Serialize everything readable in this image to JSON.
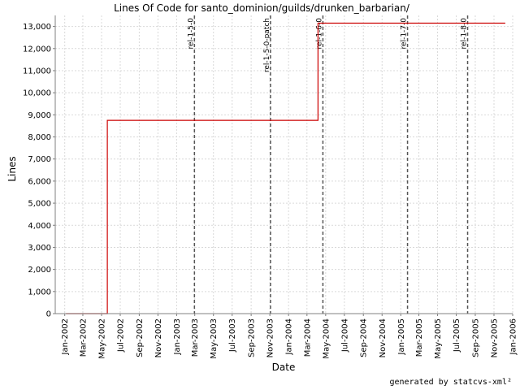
{
  "chart_data": {
    "type": "line",
    "title": "Lines Of Code for santo_dominion/guilds/drunken_barbarian/",
    "xlabel": "Date",
    "ylabel": "Lines",
    "ylim": [
      0,
      13500
    ],
    "xlim": [
      "2001-12-01",
      "2006-01-01"
    ],
    "grid": true,
    "line_color": "#cc0000",
    "y_ticks": [
      0,
      1000,
      2000,
      3000,
      4000,
      5000,
      6000,
      7000,
      8000,
      9000,
      10000,
      11000,
      12000,
      13000
    ],
    "y_tick_labels": [
      "0",
      "1,000",
      "2,000",
      "3,000",
      "4,000",
      "5,000",
      "6,000",
      "7,000",
      "8,000",
      "9,000",
      "10,000",
      "11,000",
      "12,000",
      "13,000"
    ],
    "x_ticks": [
      {
        "date": "2002-01-01",
        "label": "Jan-2002"
      },
      {
        "date": "2002-03-01",
        "label": "Mar-2002"
      },
      {
        "date": "2002-05-01",
        "label": "May-2002"
      },
      {
        "date": "2002-07-01",
        "label": "Jul-2002"
      },
      {
        "date": "2002-09-01",
        "label": "Sep-2002"
      },
      {
        "date": "2002-11-01",
        "label": "Nov-2002"
      },
      {
        "date": "2003-01-01",
        "label": "Jan-2003"
      },
      {
        "date": "2003-03-01",
        "label": "Mar-2003"
      },
      {
        "date": "2003-05-01",
        "label": "May-2003"
      },
      {
        "date": "2003-07-01",
        "label": "Jul-2003"
      },
      {
        "date": "2003-09-01",
        "label": "Sep-2003"
      },
      {
        "date": "2003-11-01",
        "label": "Nov-2003"
      },
      {
        "date": "2004-01-01",
        "label": "Jan-2004"
      },
      {
        "date": "2004-03-01",
        "label": "Mar-2004"
      },
      {
        "date": "2004-05-01",
        "label": "May-2004"
      },
      {
        "date": "2004-07-01",
        "label": "Jul-2004"
      },
      {
        "date": "2004-09-01",
        "label": "Sep-2004"
      },
      {
        "date": "2004-11-01",
        "label": "Nov-2004"
      },
      {
        "date": "2005-01-01",
        "label": "Jan-2005"
      },
      {
        "date": "2005-03-01",
        "label": "Mar-2005"
      },
      {
        "date": "2005-05-01",
        "label": "May-2005"
      },
      {
        "date": "2005-07-01",
        "label": "Jul-2005"
      },
      {
        "date": "2005-09-01",
        "label": "Sep-2005"
      },
      {
        "date": "2005-11-01",
        "label": "Nov-2005"
      },
      {
        "date": "2006-01-01",
        "label": "Jan-2006"
      }
    ],
    "series": [
      {
        "points": [
          {
            "x": "2002-01-05",
            "y": 0
          },
          {
            "x": "2002-05-20",
            "y": 0
          },
          {
            "x": "2002-05-20",
            "y": 8750
          },
          {
            "x": "2004-04-06",
            "y": 8750
          },
          {
            "x": "2004-04-06",
            "y": 13150
          },
          {
            "x": "2005-12-08",
            "y": 13150
          }
        ]
      }
    ],
    "markers": [
      {
        "date": "2003-02-28",
        "label": "rel-1-5-0"
      },
      {
        "date": "2003-11-03",
        "label": "rel-1-5-0-patch"
      },
      {
        "date": "2004-04-22",
        "label": "rel-1-6-0"
      },
      {
        "date": "2005-01-23",
        "label": "rel-1-7-0"
      },
      {
        "date": "2005-08-07",
        "label": "rel-1-8-0"
      }
    ]
  },
  "footer": "generated by statcvs-xml²"
}
